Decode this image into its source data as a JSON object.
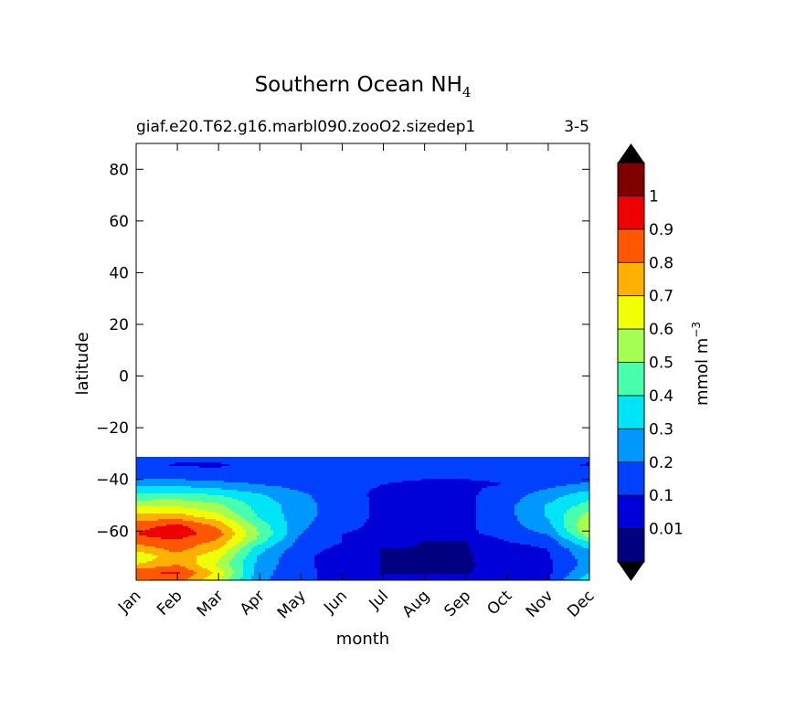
{
  "chart_data": {
    "type": "filled-contour",
    "title": "Southern Ocean NH",
    "title_subscript": "4",
    "subtitle_left": "giaf.e20.T62.g16.marbl090.zooO2.sizedep1",
    "subtitle_right": "3-5",
    "xlabel": "month",
    "ylabel": "latitude",
    "x_ticks": [
      "Jan",
      "Feb",
      "Mar",
      "Apr",
      "May",
      "Jun",
      "Jul",
      "Aug",
      "Sep",
      "Oct",
      "Nov",
      "Dec"
    ],
    "y_ticks": [
      80,
      60,
      40,
      20,
      0,
      -20,
      -40,
      -60
    ],
    "ylim": [
      -79,
      90
    ],
    "xlim": [
      0,
      11
    ],
    "data_lat_max": -31.5,
    "colorbar": {
      "label": "mmol m",
      "label_superscript": "−3",
      "levels": [
        0.01,
        0.1,
        0.2,
        0.3,
        0.4,
        0.5,
        0.6,
        0.7,
        0.8,
        0.9,
        1
      ],
      "tick_labels": [
        "0.01",
        "0.1",
        "0.2",
        "0.3",
        "0.4",
        "0.5",
        "0.6",
        "0.7",
        "0.8",
        "0.9",
        "1"
      ],
      "colors": [
        "#000080",
        "#0000d8",
        "#0040ff",
        "#0098ff",
        "#00e5f6",
        "#48ffae",
        "#a4ff52",
        "#f0ff06",
        "#ffb000",
        "#ff5800",
        "#ef0000",
        "#800000"
      ],
      "extend": "both",
      "extend_color": "#000000"
    },
    "lat_rows": [
      -32,
      -34,
      -38,
      -42,
      -46,
      -50,
      -54,
      -58,
      -61,
      -64,
      -67,
      -70,
      -73,
      -76,
      -79
    ],
    "values": [
      [
        0.15,
        0.16,
        0.16,
        0.15,
        0.14,
        0.13,
        0.12,
        0.12,
        0.12,
        0.13,
        0.14,
        0.15
      ],
      [
        0.12,
        0.09,
        0.09,
        0.12,
        0.14,
        0.13,
        0.12,
        0.12,
        0.12,
        0.13,
        0.12,
        0.09
      ],
      [
        0.15,
        0.13,
        0.12,
        0.11,
        0.11,
        0.11,
        0.11,
        0.11,
        0.11,
        0.11,
        0.12,
        0.13
      ],
      [
        0.28,
        0.27,
        0.24,
        0.2,
        0.16,
        0.12,
        0.1,
        0.09,
        0.09,
        0.1,
        0.17,
        0.22
      ],
      [
        0.42,
        0.44,
        0.4,
        0.31,
        0.22,
        0.13,
        0.08,
        0.07,
        0.08,
        0.15,
        0.25,
        0.36
      ],
      [
        0.58,
        0.58,
        0.52,
        0.36,
        0.24,
        0.14,
        0.08,
        0.07,
        0.08,
        0.17,
        0.31,
        0.44
      ],
      [
        0.72,
        0.74,
        0.62,
        0.38,
        0.24,
        0.14,
        0.08,
        0.07,
        0.08,
        0.17,
        0.31,
        0.55
      ],
      [
        0.86,
        0.93,
        0.78,
        0.46,
        0.22,
        0.12,
        0.08,
        0.07,
        0.08,
        0.16,
        0.27,
        0.62
      ],
      [
        0.9,
        0.96,
        0.84,
        0.5,
        0.2,
        0.1,
        0.08,
        0.07,
        0.08,
        0.14,
        0.21,
        0.58
      ],
      [
        0.86,
        0.88,
        0.78,
        0.44,
        0.16,
        0.1,
        0.06,
        0.005,
        0.006,
        0.1,
        0.14,
        0.42
      ],
      [
        0.72,
        0.84,
        0.7,
        0.33,
        0.13,
        0.08,
        0.005,
        0.004,
        0.004,
        0.05,
        0.1,
        0.3
      ],
      [
        0.62,
        0.76,
        0.62,
        0.28,
        0.12,
        0.06,
        0.005,
        0.003,
        0.004,
        0.04,
        0.09,
        0.26
      ],
      [
        0.7,
        0.8,
        0.58,
        0.26,
        0.12,
        0.06,
        0.004,
        0.003,
        0.004,
        0.03,
        0.08,
        0.24
      ],
      [
        0.88,
        0.92,
        0.66,
        0.24,
        0.12,
        0.07,
        0.003,
        0.003,
        0.003,
        0.04,
        0.08,
        0.3
      ],
      [
        0.78,
        0.84,
        0.6,
        0.22,
        0.12,
        0.07,
        0.04,
        0.04,
        0.04,
        0.05,
        0.1,
        0.38
      ]
    ]
  }
}
